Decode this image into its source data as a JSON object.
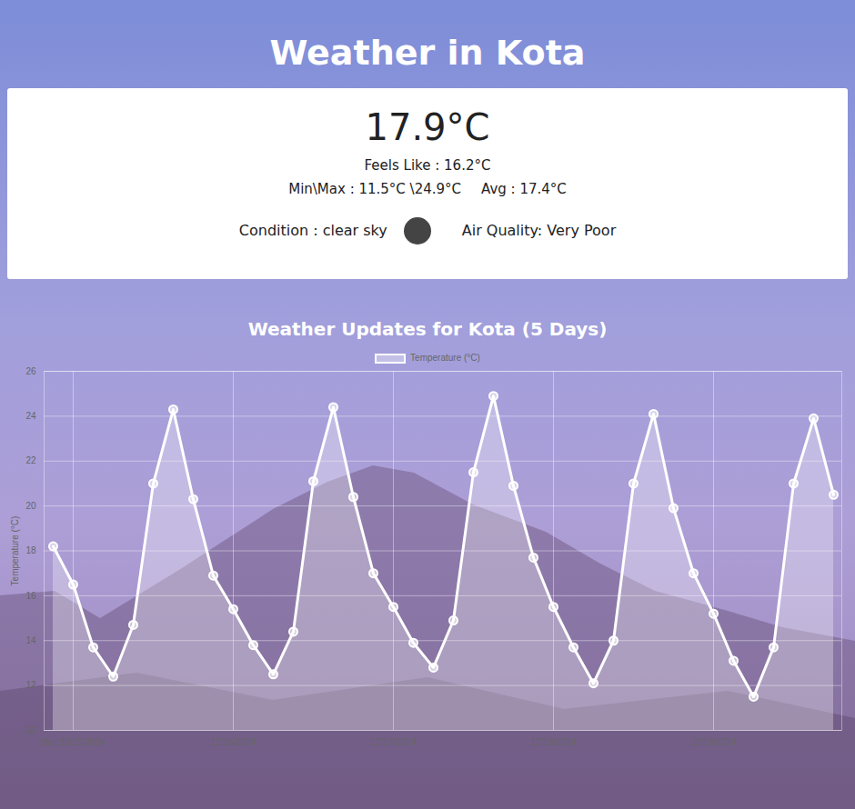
{
  "page": {
    "heading": "Weather in Kota",
    "card": {
      "temperature": "17.9°C",
      "feels_like": "Feels Like : 16.2°C",
      "min_max": "Min\\Max : 11.5°C \\24.9°C",
      "avg": "Avg : 17.4°C",
      "condition": "Condition : clear sky",
      "air_quality": "Air Quality: Very Poor"
    }
  },
  "chart_data": {
    "type": "area",
    "title": "Weather Updates for Kota (5 Days)",
    "y_label": "Temperature (°C)",
    "categories": [
      null,
      "Dec 12/15/2024",
      null,
      null,
      null,
      null,
      null,
      null,
      null,
      "12/16/2024",
      null,
      null,
      null,
      null,
      null,
      null,
      null,
      "12/17/2024",
      null,
      null,
      null,
      null,
      null,
      null,
      null,
      "12/18/2024",
      null,
      null,
      null,
      null,
      null,
      null,
      null,
      "12/19/2024",
      null,
      null,
      null,
      null,
      null,
      null
    ],
    "series": [
      {
        "name": "Temperature (°C)",
        "color": "#ffffff",
        "marker": "circle",
        "values": [
          18.2,
          16.5,
          13.7,
          12.4,
          14.7,
          21.0,
          24.3,
          20.3,
          16.9,
          15.4,
          13.8,
          12.5,
          14.4,
          21.1,
          24.4,
          20.4,
          17.0,
          15.5,
          13.9,
          12.8,
          14.9,
          21.5,
          24.9,
          20.9,
          17.7,
          15.5,
          13.7,
          12.1,
          14.0,
          21.0,
          24.1,
          19.9,
          17.0,
          15.2,
          13.1,
          11.5,
          13.7,
          21.0,
          23.9,
          20.5
        ]
      }
    ],
    "ylim": [
      10,
      26
    ],
    "yticks": [
      10,
      12,
      14,
      16,
      18,
      20,
      22,
      24,
      26
    ],
    "grid": true,
    "legend": "top"
  }
}
